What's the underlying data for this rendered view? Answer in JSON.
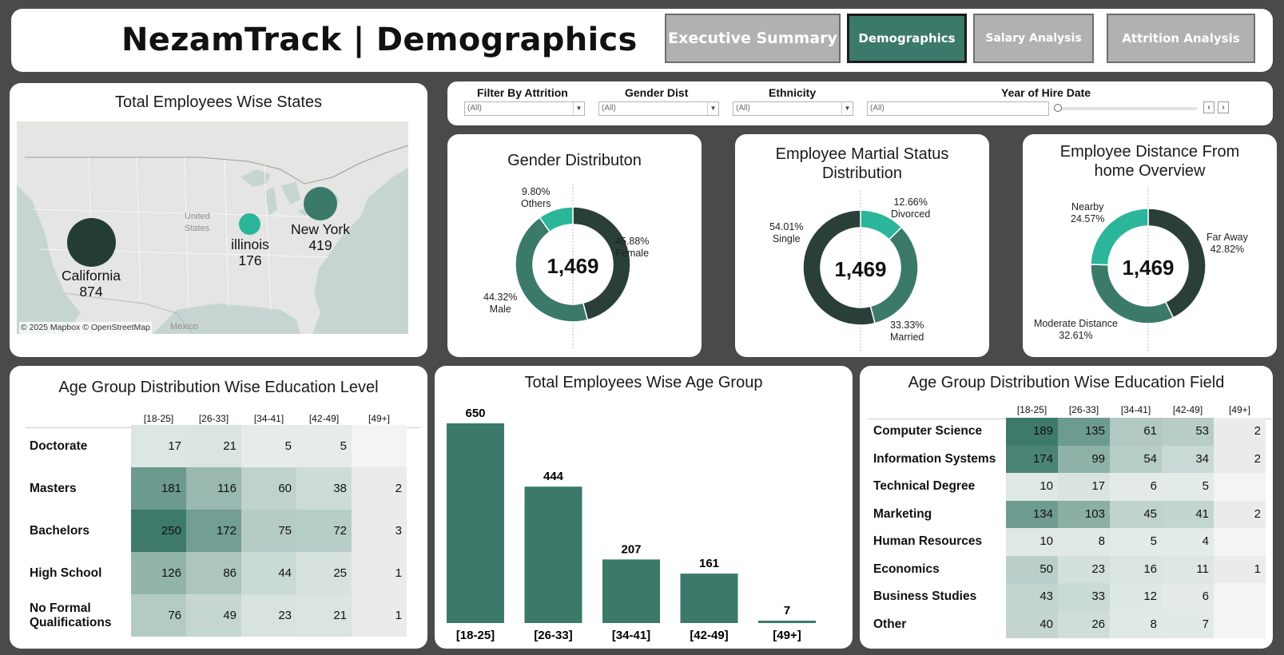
{
  "header": {
    "title": "NezamTrack | Demographics",
    "nav": [
      {
        "label": "Executive Summary",
        "active": false
      },
      {
        "label": "Demographics",
        "active": true
      },
      {
        "label": "Salary Analysis",
        "active": false
      },
      {
        "label": "Attrition Analysis",
        "active": false
      }
    ]
  },
  "map_panel": {
    "title": "Total Employees Wise States",
    "map_labels": {
      "country": "United\nStates",
      "country_line1": "United",
      "country_line2": "States",
      "mexico": "Mexico"
    },
    "attribution": "© 2025 Mapbox © OpenStreetMap",
    "states": [
      {
        "name": "California",
        "value": "874"
      },
      {
        "name": "illinois",
        "value": "176"
      },
      {
        "name": "New York",
        "value": "419"
      }
    ]
  },
  "filters": [
    {
      "label": "Filter By Attrition",
      "value": "(All)"
    },
    {
      "label": "Gender Dist",
      "value": "(All)"
    },
    {
      "label": "Ethnicity",
      "value": "(All)"
    },
    {
      "label": "Year of Hire Date",
      "value": "(All)"
    }
  ],
  "gender": {
    "title": "Gender Distributon",
    "total": "1,469",
    "slices": [
      {
        "name": "Female",
        "pct": "45.88%",
        "value": 45.88,
        "color": "#2a3f38"
      },
      {
        "name": "Male",
        "pct": "44.32%",
        "value": 44.32,
        "color": "#3b7a6a"
      },
      {
        "name": "Others",
        "pct": "9.80%",
        "value": 9.8,
        "color": "#2bb59a"
      }
    ]
  },
  "marital": {
    "title_line1": "Employee Martial Status",
    "title_line2": "Distribution",
    "total": "1,469",
    "slices": [
      {
        "name": "Divorced",
        "pct": "12.66%",
        "value": 12.66,
        "color": "#2bb59a"
      },
      {
        "name": "Married",
        "pct": "33.33%",
        "value": 33.33,
        "color": "#3b7a6a"
      },
      {
        "name": "Single",
        "pct": "54.01%",
        "value": 54.01,
        "color": "#2a3f38"
      }
    ]
  },
  "distance": {
    "title_line1": "Employee Distance From",
    "title_line2": "home Overview",
    "total": "1,469",
    "slices": [
      {
        "name": "Far Away",
        "pct": "42.82%",
        "value": 42.82,
        "color": "#2a3f38"
      },
      {
        "name": "Moderate Distance",
        "pct": "32.61%",
        "value": 32.61,
        "color": "#3b7a6a"
      },
      {
        "name": "Nearby",
        "pct": "24.57%",
        "value": 24.57,
        "color": "#2bb59a"
      }
    ]
  },
  "edu_level": {
    "title": "Age Group Distribution Wise Education Level",
    "columns": [
      "[18-25]",
      "[26-33]",
      "[34-41]",
      "[42-49]",
      "[49+]"
    ],
    "rows": [
      {
        "label": "Doctorate",
        "values": [
          "17",
          "21",
          "5",
          "5",
          ""
        ]
      },
      {
        "label": "Masters",
        "values": [
          "181",
          "116",
          "60",
          "38",
          "2"
        ]
      },
      {
        "label": "Bachelors",
        "values": [
          "250",
          "172",
          "75",
          "72",
          "3"
        ]
      },
      {
        "label": "High School",
        "values": [
          "126",
          "86",
          "44",
          "25",
          "1"
        ]
      },
      {
        "label": "No Formal Qualifications",
        "line1": "No Formal",
        "line2": "Qualifications",
        "values": [
          "76",
          "49",
          "23",
          "21",
          "1"
        ]
      }
    ]
  },
  "chart_data": {
    "type": "bar",
    "title": "Total Employees Wise Age Group",
    "categories": [
      "[18-25]",
      "[26-33]",
      "[34-41]",
      "[42-49]",
      "[49+]"
    ],
    "values": [
      650,
      444,
      207,
      161,
      7
    ],
    "color": "#3b7a6a"
  },
  "edu_field": {
    "title": "Age Group Distribution Wise Education Field",
    "columns": [
      "[18-25]",
      "[26-33]",
      "[34-41]",
      "[42-49]",
      "[49+]"
    ],
    "rows": [
      {
        "label": "Computer Science",
        "values": [
          "189",
          "135",
          "61",
          "53",
          "2"
        ]
      },
      {
        "label": "Information Systems",
        "values": [
          "174",
          "99",
          "54",
          "34",
          "2"
        ]
      },
      {
        "label": "Technical Degree",
        "values": [
          "10",
          "17",
          "6",
          "5",
          ""
        ]
      },
      {
        "label": "Marketing",
        "values": [
          "134",
          "103",
          "45",
          "41",
          "2"
        ]
      },
      {
        "label": "Human Resources",
        "values": [
          "10",
          "8",
          "5",
          "4",
          ""
        ]
      },
      {
        "label": "Economics",
        "values": [
          "50",
          "23",
          "16",
          "11",
          "1"
        ]
      },
      {
        "label": "Business Studies",
        "values": [
          "43",
          "33",
          "12",
          "6",
          ""
        ]
      },
      {
        "label": "Other",
        "values": [
          "40",
          "26",
          "8",
          "7",
          ""
        ]
      }
    ]
  }
}
